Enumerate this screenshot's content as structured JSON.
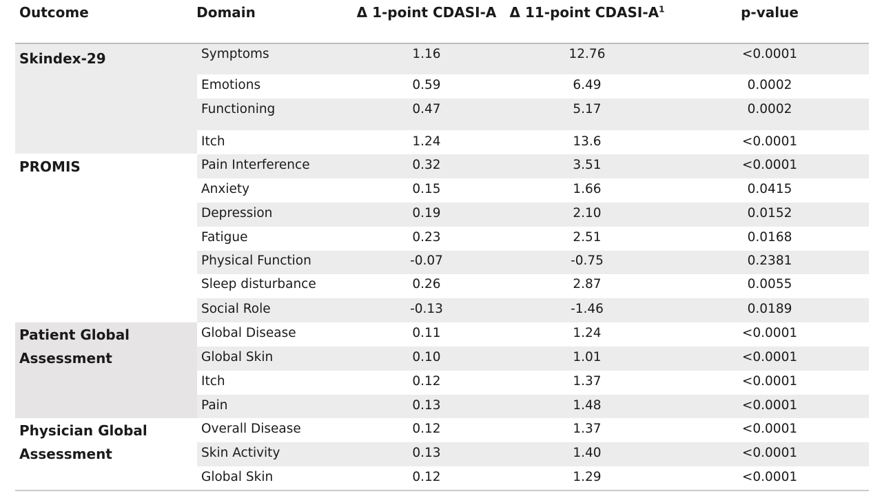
{
  "header": {
    "outcome": "Outcome",
    "domain": "Domain",
    "delta_1": "Δ 1-point CDASI-A",
    "delta_11": "Δ 11-point CDASI-A",
    "delta_11_sup": "1",
    "pvalue": "p-value"
  },
  "groups": [
    {
      "label": "Skindex-29",
      "rows": [
        {
          "domain": "Symptoms",
          "d1": "1.16",
          "d11": "12.76",
          "p": "<0.0001"
        },
        {
          "domain": "Emotions",
          "d1": "0.59",
          "d11": "6.49",
          "p": "0.0002"
        },
        {
          "domain": "Functioning",
          "d1": "0.47",
          "d11": "5.17",
          "p": "0.0002"
        },
        {
          "domain": "Itch",
          "d1": "1.24",
          "d11": "13.6",
          "p": "<0.0001"
        }
      ]
    },
    {
      "label": "PROMIS",
      "rows": [
        {
          "domain": "Pain Interference",
          "d1": "0.32",
          "d11": "3.51",
          "p": "<0.0001"
        },
        {
          "domain": "Anxiety",
          "d1": "0.15",
          "d11": "1.66",
          "p": "0.0415"
        },
        {
          "domain": "Depression",
          "d1": "0.19",
          "d11": "2.10",
          "p": "0.0152"
        },
        {
          "domain": "Fatigue",
          "d1": "0.23",
          "d11": "2.51",
          "p": "0.0168"
        },
        {
          "domain": "Physical Function",
          "d1": "-0.07",
          "d11": "-0.75",
          "p": "0.2381"
        },
        {
          "domain": "Sleep disturbance",
          "d1": "0.26",
          "d11": "2.87",
          "p": "0.0055"
        },
        {
          "domain": "Social Role",
          "d1": "-0.13",
          "d11": "-1.46",
          "p": "0.0189"
        }
      ]
    },
    {
      "label": "Patient Global Assessment",
      "label_line1": "Patient Global",
      "label_line2": "Assessment",
      "rows": [
        {
          "domain": "Global Disease",
          "d1": "0.11",
          "d11": "1.24",
          "p": "<0.0001"
        },
        {
          "domain": "Global Skin",
          "d1": "0.10",
          "d11": "1.01",
          "p": "<0.0001"
        },
        {
          "domain": "Itch",
          "d1": "0.12",
          "d11": "1.37",
          "p": "<0.0001"
        },
        {
          "domain": "Pain",
          "d1": "0.13",
          "d11": "1.48",
          "p": "<0.0001"
        }
      ]
    },
    {
      "label": "Physician Global Assessment",
      "label_line1": "Physician Global",
      "label_line2": "Assessment",
      "rows": [
        {
          "domain": "Overall Disease",
          "d1": "0.12",
          "d11": "1.37",
          "p": "<0.0001"
        },
        {
          "domain": "Skin Activity",
          "d1": "0.13",
          "d11": "1.40",
          "p": "<0.0001"
        },
        {
          "domain": "Global Skin",
          "d1": "0.12",
          "d11": "1.29",
          "p": "<0.0001"
        }
      ]
    }
  ],
  "colors": {
    "shade": "#ececec",
    "group_shade_skindex": "#ececec",
    "group_shade_patient": "#e6e4e4",
    "rule": "#bdbdbd"
  }
}
